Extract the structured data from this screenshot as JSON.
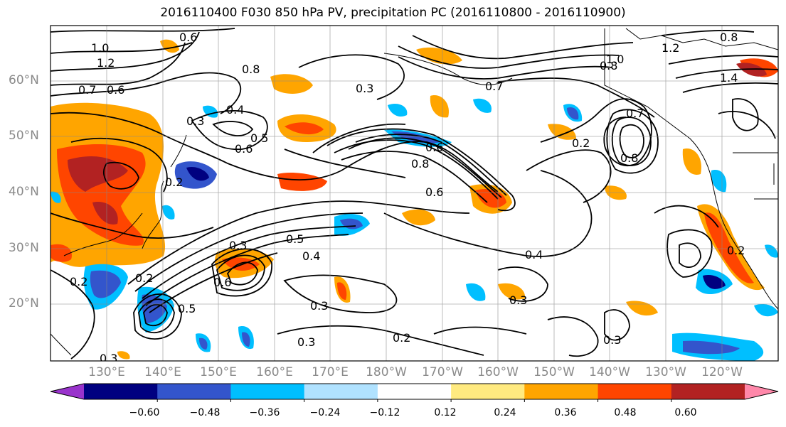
{
  "title": "2016110400 F030 850 hPa PV, precipitation PC (2016110800 - 2016110900)",
  "lat_labels": [
    "60°N",
    "50°N",
    "40°N",
    "30°N",
    "20°N"
  ],
  "lon_labels": [
    "130°E",
    "140°E",
    "150°E",
    "160°E",
    "170°E",
    "180°W",
    "170°W",
    "160°W",
    "150°W",
    "140°W",
    "130°W",
    "120°W"
  ],
  "colorbar": {
    "ticks": [
      "−0.60",
      "−0.48",
      "−0.36",
      "−0.24",
      "−0.12",
      "0.12",
      "0.24",
      "0.36",
      "0.48",
      "0.60"
    ],
    "colors": [
      "#9933cc",
      "#000080",
      "#3355cc",
      "#00bfff",
      "#b0e2ff",
      "#ffffff",
      "#ffea80",
      "#ffa500",
      "#ff4500",
      "#b22222",
      "#ff88aa"
    ]
  },
  "contour_labels": [
    "0.6",
    "1.0",
    "1.2",
    "0.7",
    "0.6",
    "0.8",
    "0.4",
    "0.3",
    "0.3",
    "0.6",
    "0.5",
    "0.2",
    "0.6",
    "0.8",
    "0.7",
    "0.6",
    "0.4",
    "0.5",
    "0.4",
    "0.3",
    "0.2",
    "0.2",
    "0.3",
    "0.3",
    "0.5",
    "0.6",
    "0.2",
    "0.2",
    "0.3",
    "1.0",
    "0.8",
    "1.2",
    "0.8",
    "0.7",
    "0.8",
    "1.4",
    "0.2",
    "0.3",
    "0.3"
  ]
}
